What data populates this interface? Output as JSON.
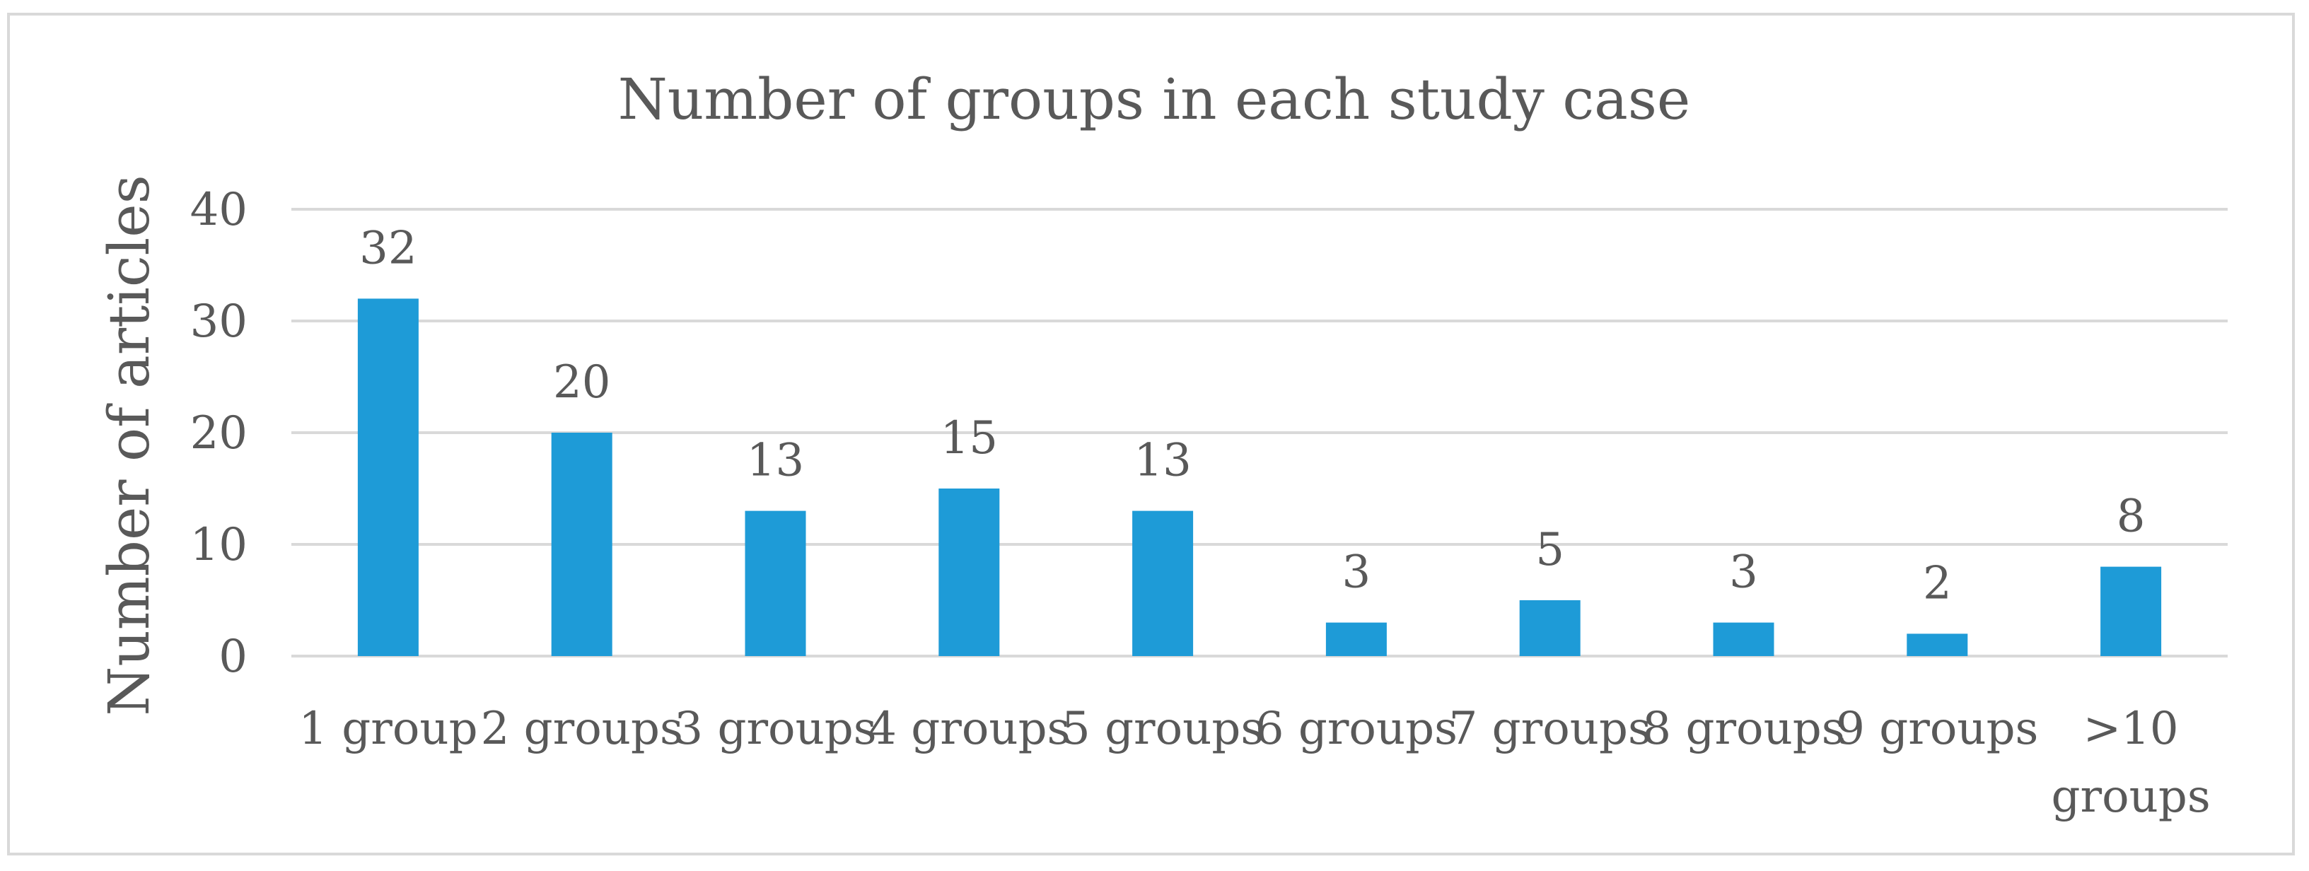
{
  "chart_data": {
    "type": "bar",
    "title": "Number of groups in each study case",
    "xlabel": "",
    "ylabel": "Number of articles",
    "categories": [
      "1 group",
      "2 groups",
      "3 groups",
      "4 groups",
      "5 groups",
      "6 groups",
      "7 groups",
      "8 groups",
      "9 groups",
      ">10 groups"
    ],
    "category_lines": [
      [
        "1 group"
      ],
      [
        "2 groups"
      ],
      [
        "3 groups"
      ],
      [
        "4 groups"
      ],
      [
        "5 groups"
      ],
      [
        "6 groups"
      ],
      [
        "7 groups"
      ],
      [
        "8 groups"
      ],
      [
        "9 groups"
      ],
      [
        ">10",
        "groups"
      ]
    ],
    "values": [
      32,
      20,
      13,
      15,
      13,
      3,
      5,
      3,
      2,
      8
    ],
    "ylim": [
      0,
      40
    ],
    "yticks": [
      0,
      10,
      20,
      30,
      40
    ],
    "grid": true,
    "legend": "none",
    "colors": {
      "bar": "#1e9bd7",
      "text": "#595959",
      "grid": "#d9d9d9"
    }
  }
}
